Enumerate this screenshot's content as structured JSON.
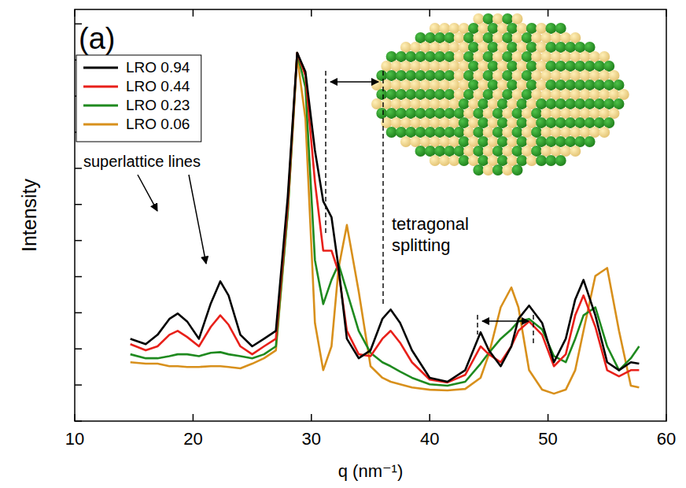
{
  "chart_data": {
    "type": "line",
    "title": "(a)",
    "x_label": "q (nm⁻¹)",
    "y_label": "Intensity",
    "annotations": [
      "superlattice lines",
      "tetragonal splitting"
    ],
    "x": [
      14.7,
      16,
      17,
      18,
      18.7,
      19.5,
      20.5,
      21.5,
      22.3,
      23,
      24,
      25,
      26,
      27,
      28,
      28.8,
      29.5,
      30.3,
      31,
      31.7,
      32.3,
      33,
      34,
      35,
      36,
      36.7,
      37.5,
      38.5,
      40,
      41.5,
      43,
      44.3,
      45,
      46,
      46.9,
      47.5,
      48.4,
      49.5,
      50.5,
      51.5,
      52.3,
      53,
      54,
      55,
      56,
      57,
      57.7
    ],
    "series": [
      {
        "name": "LRO 0.94",
        "color": "#000000",
        "values": [
          2.28,
          2.13,
          2.39,
          2.83,
          2.98,
          2.76,
          2.28,
          3.26,
          3.87,
          3.48,
          2.39,
          2.07,
          2.28,
          2.5,
          6.2,
          10.2,
          9.67,
          7.5,
          6.09,
          5.65,
          4.24,
          2.28,
          1.74,
          1.96,
          2.83,
          3.09,
          2.72,
          1.96,
          1.2,
          1.09,
          1.41,
          2.46,
          1.96,
          1.52,
          2.07,
          2.83,
          3.2,
          2.72,
          1.63,
          2.28,
          3.37,
          3.91,
          2.93,
          1.63,
          1.41,
          1.63,
          1.59
        ]
      },
      {
        "name": "LRO 0.44",
        "color": "#e8201a",
        "values": [
          2.13,
          1.96,
          2.07,
          2.39,
          2.5,
          2.33,
          2.07,
          2.61,
          2.93,
          2.67,
          2.07,
          1.85,
          2.07,
          2.28,
          5.98,
          10.2,
          9.57,
          6.63,
          4.72,
          4.72,
          4.13,
          2.5,
          1.85,
          1.8,
          2.28,
          2.5,
          2.17,
          1.63,
          1.15,
          1.07,
          1.28,
          2.07,
          1.85,
          1.63,
          2.07,
          2.5,
          2.76,
          2.39,
          1.52,
          1.85,
          2.93,
          3.48,
          2.61,
          1.41,
          1.24,
          1.41,
          1.41
        ]
      },
      {
        "name": "LRO 0.23",
        "color": "#1f8a1f",
        "values": [
          1.85,
          1.74,
          1.74,
          1.8,
          1.85,
          1.85,
          1.8,
          1.89,
          1.91,
          1.85,
          1.8,
          1.74,
          1.85,
          2.07,
          5.76,
          10.2,
          9.24,
          4.46,
          3.24,
          3.91,
          4.35,
          3.59,
          2.5,
          1.89,
          1.63,
          1.52,
          1.37,
          1.2,
          1.02,
          0.98,
          1.09,
          1.59,
          1.89,
          2.28,
          2.54,
          2.76,
          2.83,
          2.54,
          1.8,
          1.63,
          2.28,
          2.93,
          3.15,
          2.07,
          1.41,
          1.74,
          2.07
        ]
      },
      {
        "name": "LRO 0.06",
        "color": "#d8901c",
        "values": [
          1.63,
          1.59,
          1.59,
          1.52,
          1.52,
          1.5,
          1.5,
          1.52,
          1.52,
          1.5,
          1.46,
          1.59,
          1.74,
          1.96,
          5.76,
          10.1,
          8.37,
          2.72,
          1.41,
          2.07,
          4.24,
          5.43,
          3.59,
          1.52,
          1.2,
          1.09,
          1.02,
          0.93,
          0.87,
          0.85,
          0.89,
          1.2,
          1.85,
          3.15,
          3.7,
          3.15,
          1.41,
          0.87,
          0.76,
          0.87,
          1.41,
          2.5,
          4.02,
          4.24,
          2.5,
          0.98,
          0.93
        ]
      }
    ],
    "xlim": [
      10,
      60
    ],
    "xticks": [
      10,
      20,
      30,
      40,
      50,
      60
    ],
    "ylim": [
      0,
      11.4
    ],
    "yticks": [
      0,
      1,
      2,
      3,
      4,
      5,
      6,
      7,
      8,
      9,
      10,
      11
    ],
    "tick_labels": "x",
    "grid": false,
    "legend": "upper left"
  }
}
